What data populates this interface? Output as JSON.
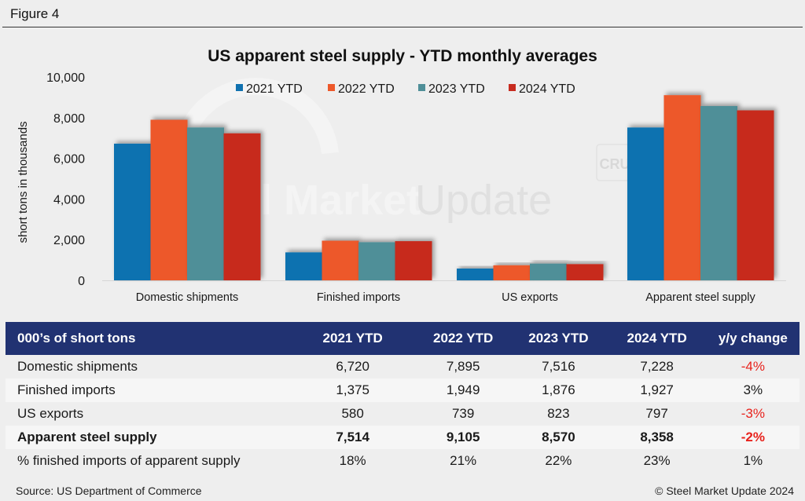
{
  "figure_label": "Figure 4",
  "chart_data": {
    "type": "bar",
    "title": "US apparent steel supply - YTD monthly averages",
    "xlabel": "",
    "ylabel": "short tons in thousands",
    "ylim": [
      0,
      10000
    ],
    "yticks": [
      0,
      2000,
      4000,
      6000,
      8000,
      10000
    ],
    "ytick_labels": [
      "0",
      "2,000",
      "4,000",
      "6,000",
      "8,000",
      "10,000"
    ],
    "grid": false,
    "legend_position": "top",
    "categories": [
      "Domestic shipments",
      "Finished imports",
      "US exports",
      "Apparent steel supply"
    ],
    "series": [
      {
        "name": "2021 YTD",
        "color": "#1172b0",
        "values": [
          6720,
          1375,
          580,
          7514
        ]
      },
      {
        "name": "2022 YTD",
        "color": "#ed582a",
        "values": [
          7895,
          1949,
          739,
          9105
        ]
      },
      {
        "name": "2023 YTD",
        "color": "#4f8f98",
        "values": [
          7516,
          1876,
          823,
          8570
        ]
      },
      {
        "name": "2024 YTD",
        "color": "#c72b1f",
        "values": [
          7228,
          1927,
          797,
          8358
        ]
      }
    ],
    "watermark": {
      "brand": "Steel Market Update",
      "badge": "CRU"
    }
  },
  "table": {
    "headers": [
      "000’s of short tons",
      "2021 YTD",
      "2022 YTD",
      "2023 YTD",
      "2024 YTD",
      "y/y change"
    ],
    "rows": [
      {
        "cells": [
          "Domestic shipments",
          "6,720",
          "7,895",
          "7,516",
          "7,228",
          "-4%"
        ],
        "bold": false,
        "change_negative": true
      },
      {
        "cells": [
          "Finished imports",
          "1,375",
          "1,949",
          "1,876",
          "1,927",
          "3%"
        ],
        "bold": false,
        "change_negative": false
      },
      {
        "cells": [
          "US exports",
          "580",
          "739",
          "823",
          "797",
          "-3%"
        ],
        "bold": false,
        "change_negative": true
      },
      {
        "cells": [
          "Apparent steel supply",
          "7,514",
          "9,105",
          "8,570",
          "8,358",
          "-2%"
        ],
        "bold": true,
        "change_negative": true
      },
      {
        "cells": [
          "% finished imports of apparent supply",
          "18%",
          "21%",
          "22%",
          "23%",
          "1%"
        ],
        "bold": false,
        "change_negative": false
      }
    ],
    "header_color": "#213272",
    "negative_color": "#e8221c"
  },
  "footer": {
    "source": "Source: US Department of Commerce",
    "copyright": "© Steel Market Update 2024"
  }
}
